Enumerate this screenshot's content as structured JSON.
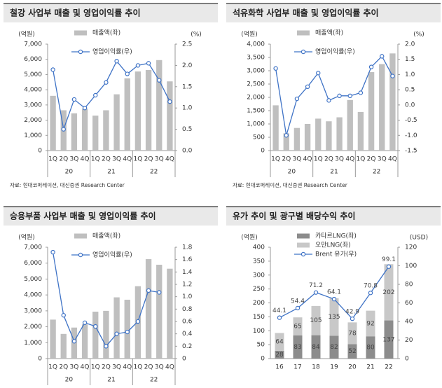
{
  "chart_data": [
    {
      "type": "bar_line",
      "title": "철강 사업부 매출 및 영업이익률 추이",
      "y_label": "(억원)",
      "y2_label": "(%)",
      "categories": [
        "1Q",
        "2Q",
        "3Q",
        "4Q",
        "1Q",
        "2Q",
        "3Q",
        "4Q",
        "1Q",
        "2Q",
        "3Q",
        "4Q"
      ],
      "category_groups": [
        "20",
        "21",
        "22"
      ],
      "series": [
        {
          "name": "매출액(좌)",
          "kind": "bar",
          "color": "#bfbfbf",
          "values": [
            3600,
            2650,
            2450,
            2750,
            2300,
            2650,
            3700,
            4750,
            5200,
            5300,
            5950,
            4550
          ]
        },
        {
          "name": "영업이익률(우)",
          "kind": "line",
          "axis": "y2",
          "color": "#3f73c6",
          "values": [
            1.9,
            0.5,
            1.2,
            1.0,
            1.3,
            1.6,
            2.1,
            1.8,
            2.0,
            2.05,
            1.65,
            1.15
          ]
        }
      ],
      "ylim": [
        0,
        7000
      ],
      "yticks": [
        0,
        {
          "value": 1000,
          "label": "1,000"
        },
        {
          "value": 2000,
          "label": "2,000"
        },
        {
          "value": 3000,
          "label": "3,000"
        },
        {
          "value": 4000,
          "label": "4,000"
        },
        {
          "value": 5000,
          "label": "5,000"
        },
        {
          "value": 6000,
          "label": "6,000"
        },
        {
          "value": 7000,
          "label": "7,000"
        }
      ],
      "y2lim": [
        0,
        2.5
      ],
      "y2ticks": [
        {
          "value": 0,
          "label": "0.0"
        },
        0.5,
        {
          "value": 1,
          "label": "1.0"
        },
        1.5,
        {
          "value": 2,
          "label": "2.0"
        },
        2.5
      ],
      "source": "자료: 현대코퍼레이션, 대신증권 Research Center"
    },
    {
      "type": "bar_line",
      "title": "석유화학 사업부 매출 및 영업이익률 추이",
      "y_label": "(억원)",
      "y2_label": "(%)",
      "categories": [
        "1Q",
        "2Q",
        "3Q",
        "4Q",
        "1Q",
        "2Q",
        "3Q",
        "4Q",
        "1Q",
        "2Q",
        "3Q",
        "4Q"
      ],
      "category_groups": [
        "20",
        "21",
        "22"
      ],
      "series": [
        {
          "name": "매출액(좌)",
          "kind": "bar",
          "color": "#bfbfbf",
          "values": [
            1700,
            650,
            850,
            1000,
            1200,
            1100,
            1250,
            1900,
            1450,
            2950,
            3250,
            3650
          ]
        },
        {
          "name": "영업이익률(우)",
          "kind": "line",
          "axis": "y2",
          "color": "#3f73c6",
          "values": [
            1.2,
            -1.0,
            0.2,
            0.6,
            1.05,
            0.15,
            0.3,
            0.3,
            0.4,
            1.25,
            1.6,
            0.95
          ]
        }
      ],
      "ylim": [
        0,
        4000
      ],
      "yticks": [
        0,
        500,
        {
          "value": 1000,
          "label": "1,000"
        },
        {
          "value": 1500,
          "label": "1,500"
        },
        {
          "value": 2000,
          "label": "2,000"
        },
        {
          "value": 2500,
          "label": "2,500"
        },
        {
          "value": 3000,
          "label": "3,000"
        },
        {
          "value": 3500,
          "label": "3,500"
        },
        {
          "value": 4000,
          "label": "4,000"
        }
      ],
      "y2lim": [
        -1.5,
        2.0
      ],
      "y2ticks": [
        -1.5,
        {
          "value": -1,
          "label": "-1.0"
        },
        -0.5,
        {
          "value": 0,
          "label": "0.0"
        },
        0.5,
        {
          "value": 1,
          "label": "1.0"
        },
        1.5,
        {
          "value": 2,
          "label": "2.0"
        }
      ],
      "source": "자료: 현대코퍼레이션, 대신증권 Research Center"
    },
    {
      "type": "bar_line",
      "title": "승용부품 사업부 매출 및 영업이익률 추이",
      "y_label": "(억원)",
      "categories": [
        "1Q",
        "2Q",
        "3Q",
        "4Q",
        "1Q",
        "2Q",
        "3Q",
        "4Q",
        "1Q",
        "2Q",
        "3Q",
        "4Q"
      ],
      "category_groups": [
        "20",
        "21",
        "22"
      ],
      "series": [
        {
          "name": "매출액(좌)",
          "kind": "bar",
          "color": "#bfbfbf",
          "values": [
            2450,
            1550,
            1950,
            2150,
            2950,
            3000,
            3850,
            3700,
            4550,
            6250,
            5900,
            5650
          ]
        },
        {
          "name": "영업이익률(우)",
          "kind": "line",
          "axis": "y2",
          "color": "#3f73c6",
          "values": [
            1.72,
            0.7,
            0.28,
            0.58,
            0.52,
            0.2,
            0.4,
            0.43,
            0.6,
            1.1,
            1.07,
            null
          ]
        }
      ],
      "ylim": [
        0,
        7000
      ],
      "yticks": [
        0,
        {
          "value": 1000,
          "label": "1,000"
        },
        {
          "value": 2000,
          "label": "2,000"
        },
        {
          "value": 3000,
          "label": "3,000"
        },
        {
          "value": 4000,
          "label": "4,000"
        },
        {
          "value": 5000,
          "label": "5,000"
        },
        {
          "value": 6000,
          "label": "6,000"
        },
        {
          "value": 7000,
          "label": "7,000"
        }
      ],
      "y2lim": [
        0,
        1.8
      ],
      "y2ticks": [
        0,
        0.2,
        0.4,
        0.6,
        0.8,
        {
          "value": 1,
          "label": "1.0"
        },
        1.2,
        1.4,
        1.6,
        1.8
      ]
    },
    {
      "type": "bar_line",
      "title": "유가 추이 및 광구별 배당수익 추이",
      "y_label": "(억원)",
      "y2_label": "(USD)",
      "stacked": true,
      "data_labels": true,
      "categories": [
        "16",
        "17",
        "18",
        "19",
        "20",
        "21",
        "22"
      ],
      "series": [
        {
          "name": "카타르LNG(좌)",
          "kind": "bar",
          "color": "#8c8c8c",
          "values": [
            28,
            83,
            84,
            82,
            52,
            80,
            137
          ]
        },
        {
          "name": "오만LNG(좌)",
          "kind": "bar",
          "color": "#c8c8c8",
          "values": [
            64,
            65,
            105,
            135,
            78,
            92,
            202
          ]
        },
        {
          "name": "Brent 유가(우)",
          "kind": "line",
          "axis": "y2",
          "color": "#3f73c6",
          "values": [
            44.1,
            54.4,
            71.2,
            64.1,
            42.9,
            70.8,
            99.1
          ]
        }
      ],
      "ylim": [
        0,
        400
      ],
      "yticks": [
        0,
        50,
        100,
        150,
        200,
        250,
        300,
        350,
        400
      ],
      "y2lim": [
        0,
        120
      ],
      "y2ticks": [
        0,
        20,
        40,
        60,
        80,
        100,
        120
      ]
    }
  ]
}
